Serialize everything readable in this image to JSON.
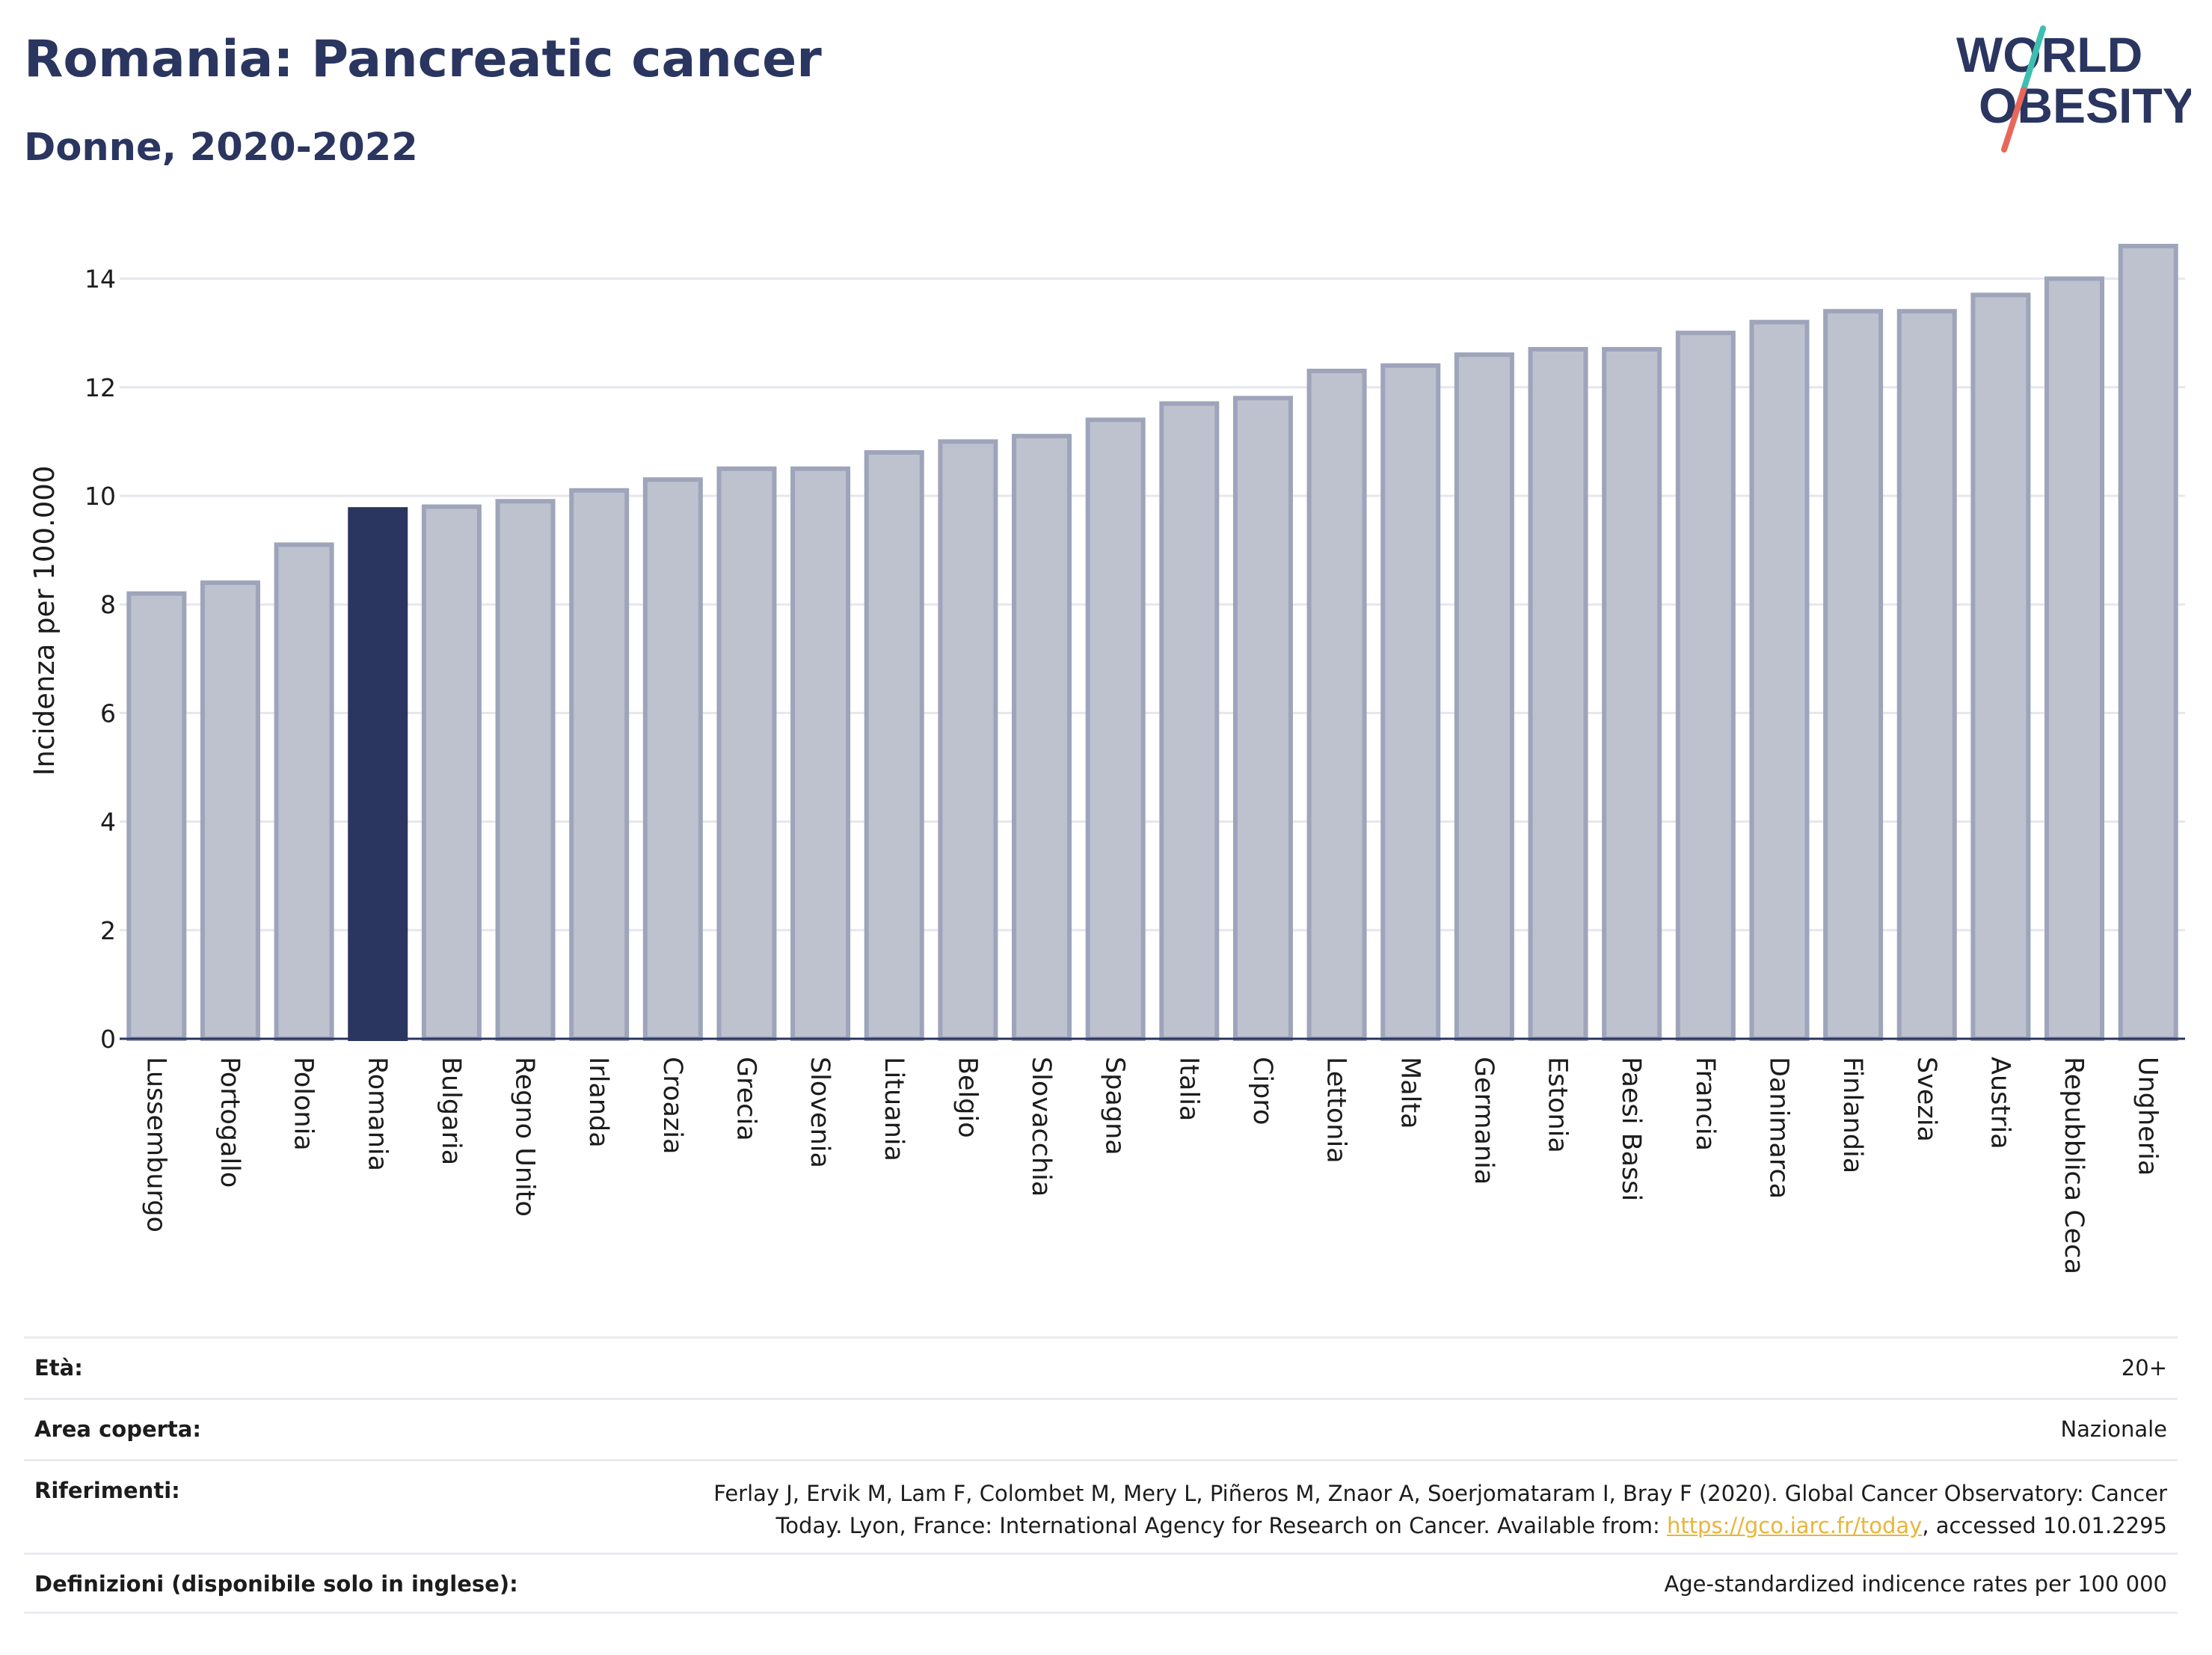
{
  "header": {
    "title": "Romania: Pancreatic cancer",
    "subtitle": "Donne, 2020-2022"
  },
  "logo": {
    "line1": "WORLD",
    "line2": "OBESITY",
    "colors": {
      "text": "#2a3560",
      "slash_teal": "#3fbfb0",
      "slash_red": "#e8675a"
    }
  },
  "chart_data": {
    "type": "bar",
    "ylabel": "Incidenza per 100.000",
    "ylim": [
      0,
      14.8
    ],
    "yticks": [
      0,
      2,
      4,
      6,
      8,
      10,
      12,
      14
    ],
    "grid": true,
    "categories": [
      "Lussemburgo",
      "Portogallo",
      "Polonia",
      "Romania",
      "Bulgaria",
      "Regno Unito",
      "Irlanda",
      "Croazia",
      "Grecia",
      "Slovenia",
      "Lituania",
      "Belgio",
      "Slovacchia",
      "Spagna",
      "Italia",
      "Cipro",
      "Lettonia",
      "Malta",
      "Germania",
      "Estonia",
      "Paesi Bassi",
      "Francia",
      "Danimarca",
      "Finlandia",
      "Svezia",
      "Austria",
      "Repubblica Ceca",
      "Ungheria"
    ],
    "values": [
      8.2,
      8.4,
      9.1,
      9.75,
      9.8,
      9.9,
      10.1,
      10.3,
      10.5,
      10.5,
      10.8,
      11.0,
      11.1,
      11.4,
      11.7,
      11.8,
      12.3,
      12.4,
      12.6,
      12.7,
      12.7,
      13.0,
      13.2,
      13.4,
      13.4,
      13.7,
      14.0,
      14.6
    ],
    "highlight": "Romania",
    "colors": {
      "highlight": "#2a3560",
      "bar_fill": "#bec2cf",
      "bar_stroke": "#9ea4ba",
      "grid": "#e5e7ee",
      "axis": "#2a3560"
    }
  },
  "meta": {
    "rows": [
      {
        "key": "Età:",
        "value": "20+"
      },
      {
        "key": "Area coperta:",
        "value": "Nazionale"
      },
      {
        "key": "Riferimenti:",
        "value_line1": "Ferlay J, Ervik M, Lam F, Colombet M, Mery L, Piñeros M, Znaor A, Soerjomataram I, Bray F (2020). Global Cancer Observatory: Cancer",
        "value_line2_pre": "Today. Lyon, France: International Agency for Research on Cancer. Available from: ",
        "link": "https://gco.iarc.fr/today",
        "value_line2_post": ", accessed 10.01.2295"
      },
      {
        "key": "Definizioni (disponibile solo in inglese):",
        "value": "Age-standardized indicence rates per 100 000"
      }
    ]
  }
}
